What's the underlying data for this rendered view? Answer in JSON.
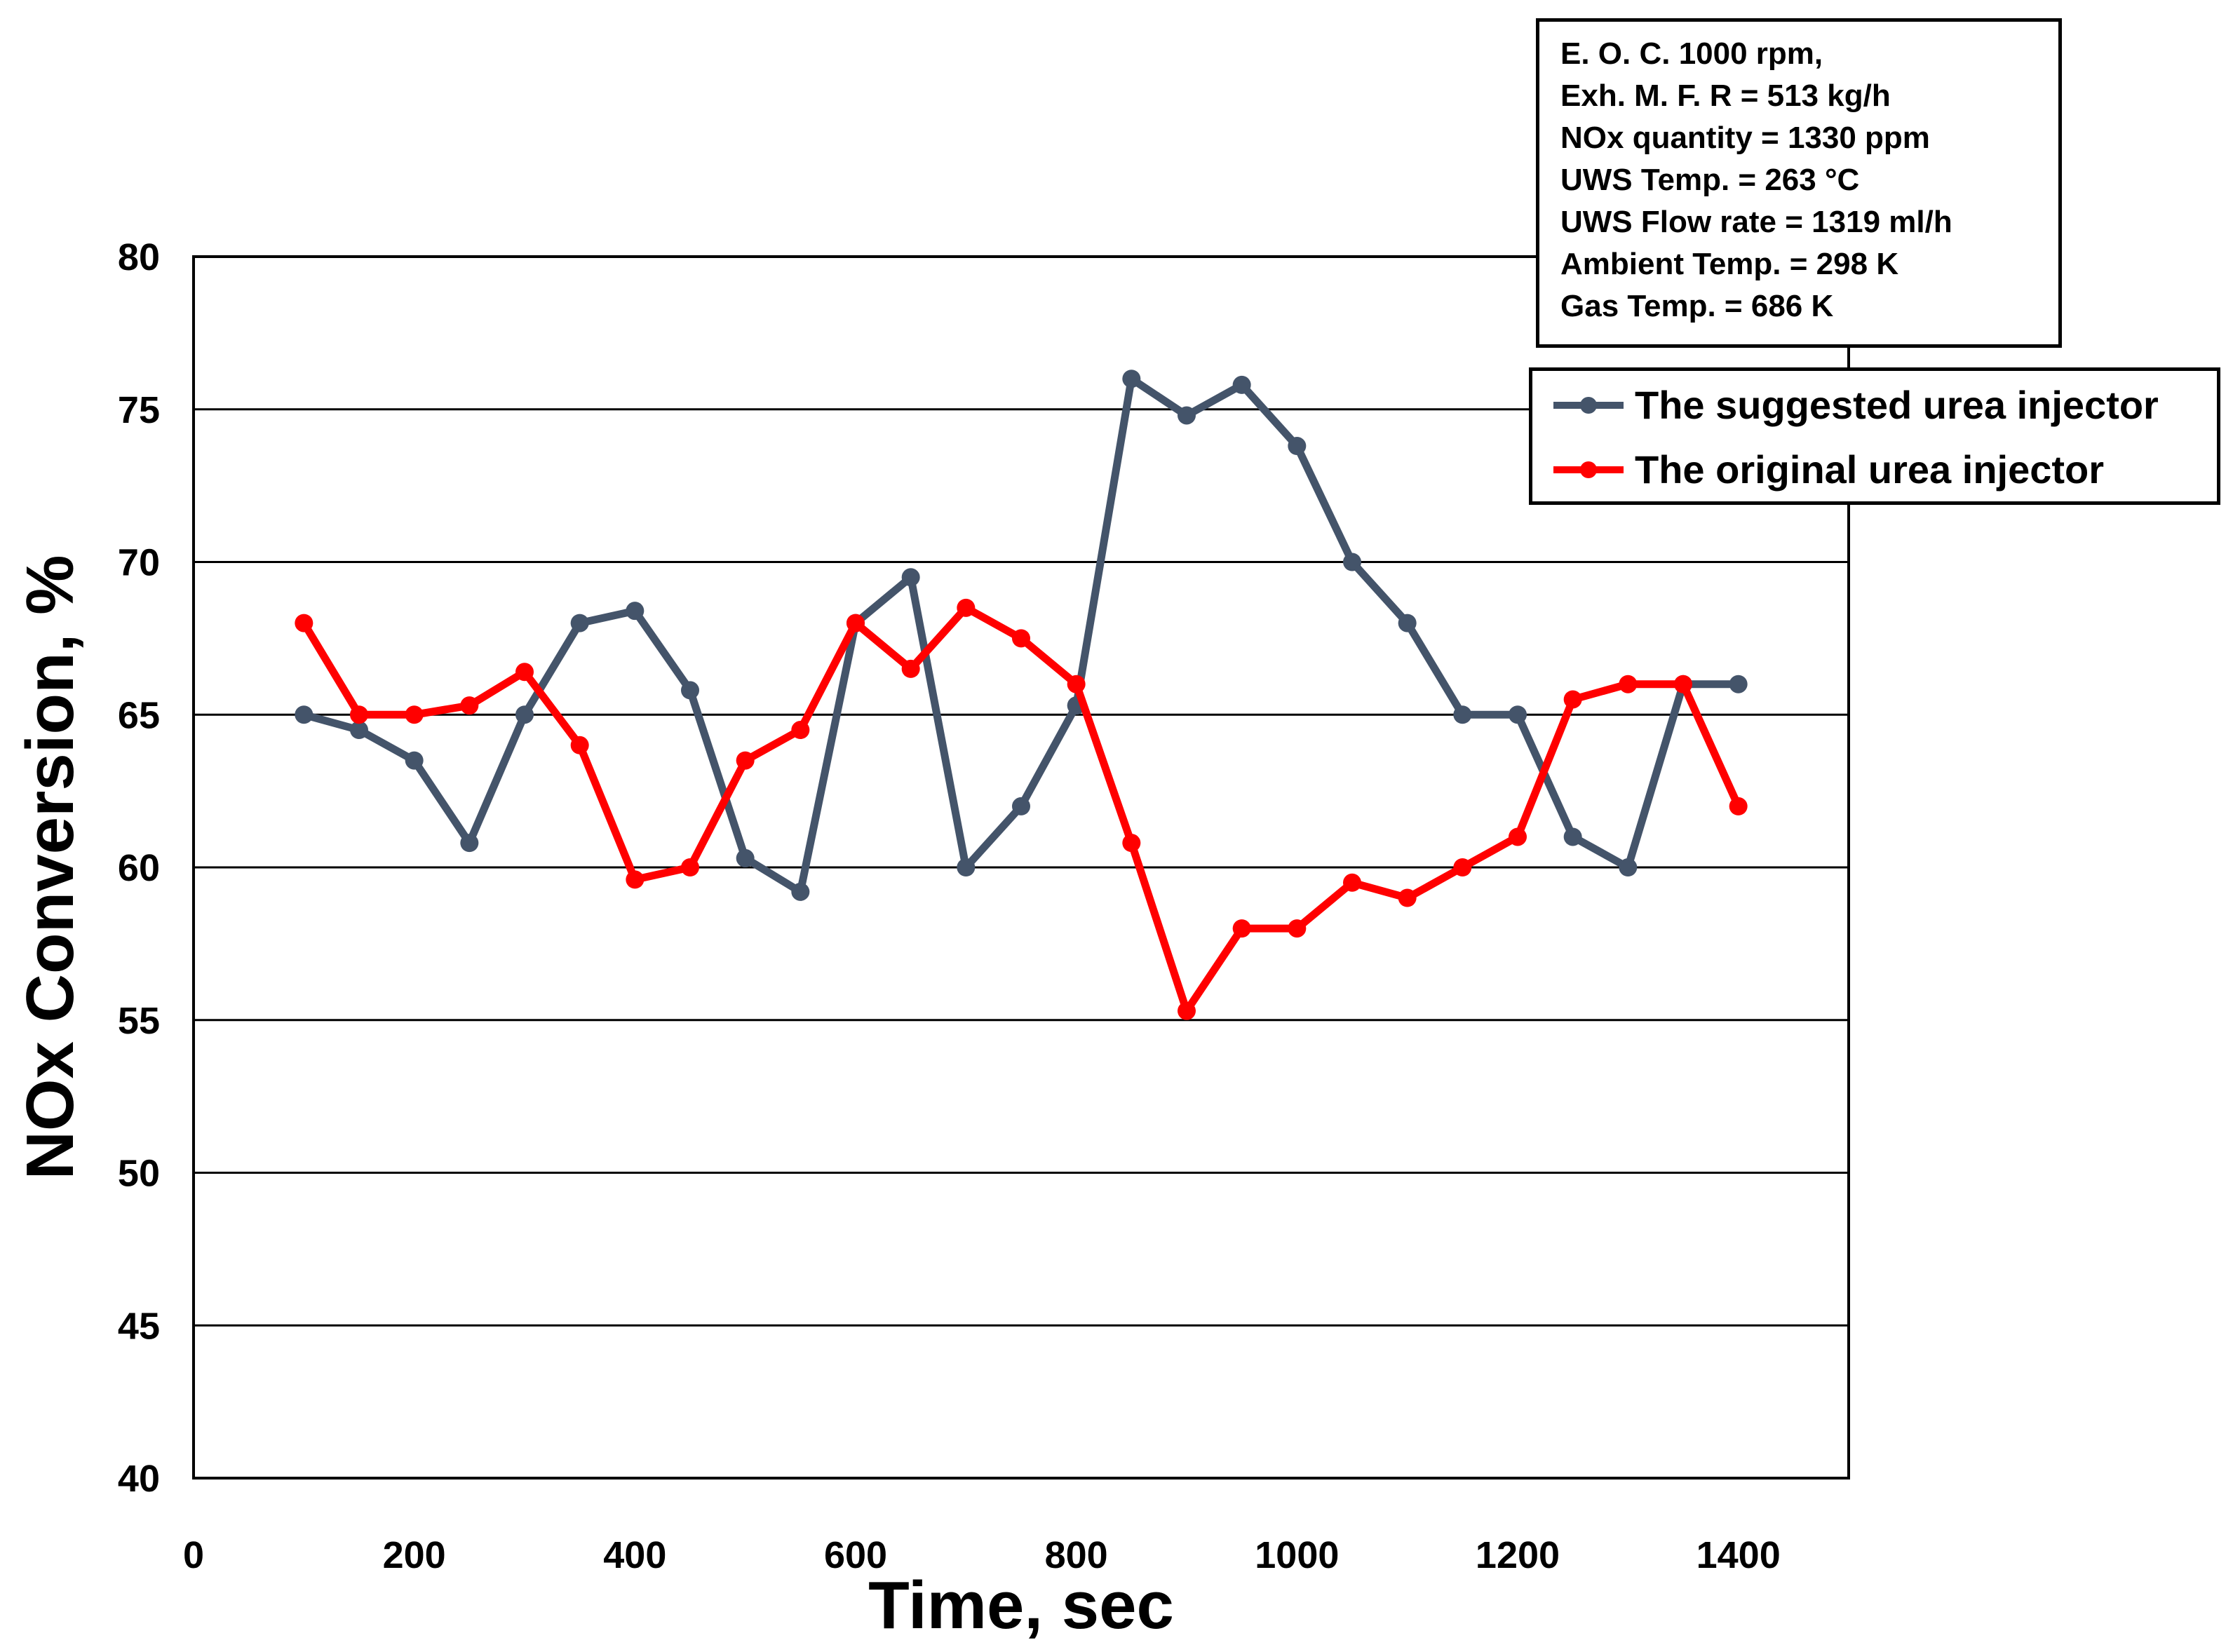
{
  "chart_data": {
    "type": "line",
    "title": "",
    "xlabel": "Time, sec",
    "ylabel": "NOx Conversion, %",
    "xlim": [
      0,
      1500
    ],
    "ylim": [
      40,
      80
    ],
    "x_ticks": [
      0,
      200,
      400,
      600,
      800,
      1000,
      1200,
      1400
    ],
    "x_tick_labels": [
      "0",
      "200",
      "400",
      "600",
      "800",
      "1000",
      "1200",
      "1400"
    ],
    "y_ticks": [
      40,
      45,
      50,
      55,
      60,
      65,
      70,
      75,
      80
    ],
    "y_tick_labels": [
      "40",
      "45",
      "50",
      "55",
      "60",
      "65",
      "70",
      "75",
      "80"
    ],
    "grid": "horizontal",
    "legend_position": "top-right",
    "x": [
      100,
      150,
      200,
      250,
      300,
      350,
      400,
      450,
      500,
      550,
      600,
      650,
      700,
      750,
      800,
      850,
      900,
      950,
      1000,
      1050,
      1100,
      1150,
      1200,
      1250,
      1300,
      1350,
      1400
    ],
    "series": [
      {
        "name": "The suggested urea injector",
        "color": "#44546a",
        "values": [
          65,
          64.5,
          63.5,
          60.8,
          65,
          68,
          68.4,
          65.8,
          60.3,
          59.2,
          68,
          69.5,
          60,
          62,
          65.3,
          76,
          74.8,
          75.8,
          73.8,
          70,
          68,
          65,
          65,
          61,
          60,
          66,
          66
        ]
      },
      {
        "name": "The original urea injector",
        "color": "#ff0000",
        "values": [
          68,
          65,
          65,
          65.3,
          66.4,
          64,
          59.6,
          60,
          63.5,
          64.5,
          68,
          66.5,
          68.5,
          67.5,
          66,
          60.8,
          55.3,
          58,
          58,
          59.5,
          59,
          60,
          61,
          65.5,
          66,
          66,
          62
        ]
      }
    ],
    "annotation_lines": [
      "E. O. C. 1000 rpm,",
      "Exh. M. F. R = 513 kg/h",
      "NOx quantity = 1330 ppm",
      "UWS Temp. = 263 °C",
      "UWS Flow rate = 1319 ml/h",
      "Ambient  Temp. = 298 K",
      "Gas Temp. = 686 K"
    ]
  }
}
